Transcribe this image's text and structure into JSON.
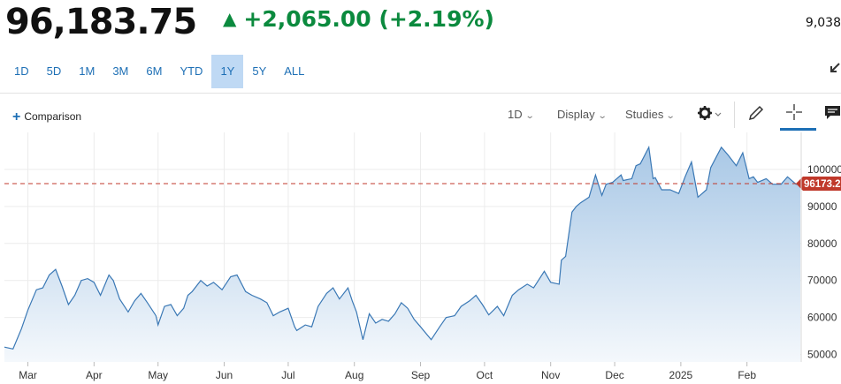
{
  "quote": {
    "price": "96,183.75",
    "change_arrow": "▲",
    "change": "+2,065.00 (+2.19%)",
    "right_value": "9,038",
    "colors": {
      "up": "#0b8a3e",
      "price": "#111111"
    }
  },
  "ranges": [
    {
      "label": "1D",
      "active": false
    },
    {
      "label": "5D",
      "active": false
    },
    {
      "label": "1M",
      "active": false
    },
    {
      "label": "3M",
      "active": false
    },
    {
      "label": "6M",
      "active": false
    },
    {
      "label": "YTD",
      "active": false
    },
    {
      "label": "1Y",
      "active": true
    },
    {
      "label": "5Y",
      "active": false
    },
    {
      "label": "ALL",
      "active": false
    }
  ],
  "toolbar": {
    "comparison_label": "Comparison",
    "interval_label": "1D",
    "display_label": "Display",
    "studies_label": "Studies",
    "icons": [
      "gear-icon",
      "pencil-icon",
      "crosshair-icon",
      "comment-icon",
      "expand-icon"
    ]
  },
  "chart_data": {
    "type": "area",
    "title": "",
    "xlabel": "",
    "ylabel": "",
    "ylim": [
      48000,
      110000
    ],
    "yticks": [
      50000,
      60000,
      70000,
      80000,
      90000,
      100000
    ],
    "ytick_labels": [
      "50000",
      "60000",
      "70000",
      "80000",
      "90000",
      "100000"
    ],
    "x_ticks": [
      {
        "label": "Mar",
        "date": "2024-03-01"
      },
      {
        "label": "Apr",
        "date": "2024-04-01"
      },
      {
        "label": "May",
        "date": "2024-05-01"
      },
      {
        "label": "Jun",
        "date": "2024-06-01"
      },
      {
        "label": "Jul",
        "date": "2024-07-01"
      },
      {
        "label": "Aug",
        "date": "2024-08-01"
      },
      {
        "label": "Sep",
        "date": "2024-09-01"
      },
      {
        "label": "Oct",
        "date": "2024-10-01"
      },
      {
        "label": "Nov",
        "date": "2024-11-01"
      },
      {
        "label": "Dec",
        "date": "2024-12-01"
      },
      {
        "label": "2025",
        "date": "2025-01-01"
      },
      {
        "label": "Feb",
        "date": "2025-02-01"
      }
    ],
    "x_domain": [
      "2024-02-19",
      "2025-02-26"
    ],
    "grid": true,
    "reference_line": {
      "value": 96173.2,
      "label": "96173.2",
      "style": "dashed",
      "color": "#c0392b"
    },
    "colors": {
      "line": "#3a78b5",
      "fill_top": "#a9c8e6",
      "fill_bottom": "#f4f8fc"
    },
    "series": [
      {
        "points": [
          [
            "2024-02-19",
            52000
          ],
          [
            "2024-02-23",
            51500
          ],
          [
            "2024-02-27",
            57000
          ],
          [
            "2024-03-01",
            62000
          ],
          [
            "2024-03-05",
            67500
          ],
          [
            "2024-03-08",
            68000
          ],
          [
            "2024-03-11",
            71500
          ],
          [
            "2024-03-14",
            73000
          ],
          [
            "2024-03-17",
            68500
          ],
          [
            "2024-03-20",
            63500
          ],
          [
            "2024-03-23",
            66000
          ],
          [
            "2024-03-26",
            70000
          ],
          [
            "2024-03-29",
            70500
          ],
          [
            "2024-04-01",
            69500
          ],
          [
            "2024-04-04",
            66000
          ],
          [
            "2024-04-08",
            71500
          ],
          [
            "2024-04-10",
            70000
          ],
          [
            "2024-04-13",
            65000
          ],
          [
            "2024-04-17",
            61500
          ],
          [
            "2024-04-20",
            64500
          ],
          [
            "2024-04-23",
            66500
          ],
          [
            "2024-04-26",
            64000
          ],
          [
            "2024-04-30",
            60500
          ],
          [
            "2024-05-01",
            58000
          ],
          [
            "2024-05-04",
            63000
          ],
          [
            "2024-05-07",
            63500
          ],
          [
            "2024-05-10",
            60500
          ],
          [
            "2024-05-13",
            62500
          ],
          [
            "2024-05-15",
            66000
          ],
          [
            "2024-05-17",
            67000
          ],
          [
            "2024-05-21",
            70000
          ],
          [
            "2024-05-24",
            68500
          ],
          [
            "2024-05-27",
            69500
          ],
          [
            "2024-05-31",
            67500
          ],
          [
            "2024-06-04",
            71000
          ],
          [
            "2024-06-07",
            71500
          ],
          [
            "2024-06-11",
            67000
          ],
          [
            "2024-06-14",
            66000
          ],
          [
            "2024-06-18",
            65000
          ],
          [
            "2024-06-21",
            64000
          ],
          [
            "2024-06-24",
            60500
          ],
          [
            "2024-06-27",
            61500
          ],
          [
            "2024-07-01",
            62500
          ],
          [
            "2024-07-04",
            57500
          ],
          [
            "2024-07-05",
            56500
          ],
          [
            "2024-07-09",
            58000
          ],
          [
            "2024-07-12",
            57500
          ],
          [
            "2024-07-15",
            63000
          ],
          [
            "2024-07-19",
            66500
          ],
          [
            "2024-07-22",
            68000
          ],
          [
            "2024-07-25",
            65000
          ],
          [
            "2024-07-29",
            68000
          ],
          [
            "2024-07-31",
            64500
          ],
          [
            "2024-08-02",
            61500
          ],
          [
            "2024-08-05",
            54000
          ],
          [
            "2024-08-08",
            61000
          ],
          [
            "2024-08-11",
            58500
          ],
          [
            "2024-08-14",
            59500
          ],
          [
            "2024-08-17",
            59000
          ],
          [
            "2024-08-20",
            61000
          ],
          [
            "2024-08-23",
            64000
          ],
          [
            "2024-08-26",
            62500
          ],
          [
            "2024-08-29",
            59500
          ],
          [
            "2024-09-01",
            57500
          ],
          [
            "2024-09-06",
            54000
          ],
          [
            "2024-09-10",
            57500
          ],
          [
            "2024-09-13",
            60000
          ],
          [
            "2024-09-17",
            60500
          ],
          [
            "2024-09-20",
            63000
          ],
          [
            "2024-09-24",
            64500
          ],
          [
            "2024-09-27",
            66000
          ],
          [
            "2024-09-30",
            63500
          ],
          [
            "2024-10-03",
            60700
          ],
          [
            "2024-10-07",
            63000
          ],
          [
            "2024-10-10",
            60500
          ],
          [
            "2024-10-14",
            66000
          ],
          [
            "2024-10-17",
            67500
          ],
          [
            "2024-10-21",
            69000
          ],
          [
            "2024-10-24",
            68000
          ],
          [
            "2024-10-29",
            72500
          ],
          [
            "2024-11-01",
            69500
          ],
          [
            "2024-11-05",
            69000
          ],
          [
            "2024-11-06",
            75500
          ],
          [
            "2024-11-08",
            76500
          ],
          [
            "2024-11-11",
            88500
          ],
          [
            "2024-11-13",
            90000
          ],
          [
            "2024-11-15",
            91000
          ],
          [
            "2024-11-19",
            92500
          ],
          [
            "2024-11-22",
            98500
          ],
          [
            "2024-11-25",
            93000
          ],
          [
            "2024-11-27",
            96000
          ],
          [
            "2024-11-30",
            96500
          ],
          [
            "2024-12-04",
            98500
          ],
          [
            "2024-12-05",
            97000
          ],
          [
            "2024-12-09",
            97500
          ],
          [
            "2024-12-11",
            101000
          ],
          [
            "2024-12-13",
            101500
          ],
          [
            "2024-12-17",
            106000
          ],
          [
            "2024-12-19",
            97500
          ],
          [
            "2024-12-20",
            97800
          ],
          [
            "2024-12-23",
            94500
          ],
          [
            "2024-12-27",
            94500
          ],
          [
            "2024-12-31",
            93500
          ],
          [
            "2025-01-03",
            98000
          ],
          [
            "2025-01-06",
            102000
          ],
          [
            "2025-01-09",
            92500
          ],
          [
            "2025-01-13",
            94500
          ],
          [
            "2025-01-15",
            100500
          ],
          [
            "2025-01-20",
            106000
          ],
          [
            "2025-01-23",
            104000
          ],
          [
            "2025-01-27",
            101000
          ],
          [
            "2025-01-30",
            104500
          ],
          [
            "2025-02-02",
            97500
          ],
          [
            "2025-02-04",
            98000
          ],
          [
            "2025-02-06",
            96500
          ],
          [
            "2025-02-10",
            97500
          ],
          [
            "2025-02-13",
            96000
          ],
          [
            "2025-02-17",
            96000
          ],
          [
            "2025-02-20",
            98000
          ],
          [
            "2025-02-24",
            96000
          ],
          [
            "2025-02-26",
            96173
          ]
        ]
      }
    ]
  }
}
